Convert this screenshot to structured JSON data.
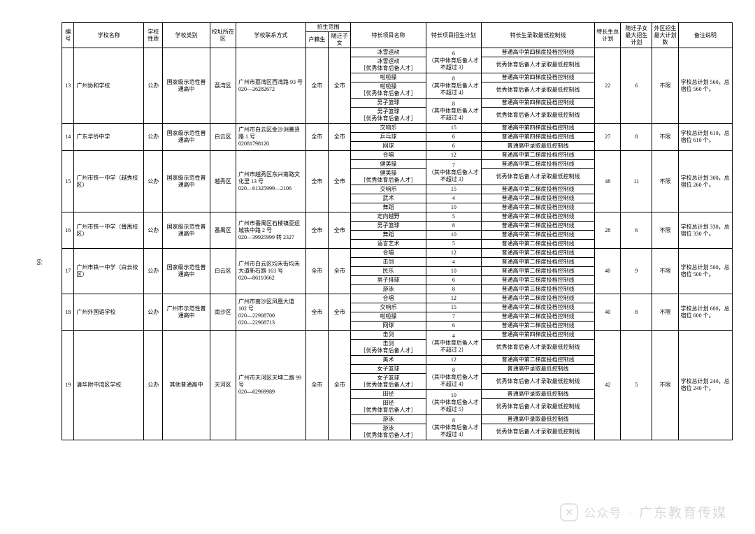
{
  "page_number": "99",
  "headers": {
    "seq": "编号",
    "school": "学校名称",
    "nature": "学校性质",
    "category": "学校类别",
    "district": "校址所在区",
    "contact": "学校联系方式",
    "scope": "招生范围",
    "scope_hk": "户籍生",
    "scope_sz": "随迁子女",
    "item": "特长项目名称",
    "plan": "特长项目招生计划",
    "line": "特长生录取最低控制线",
    "total": "特长生总计划",
    "sz_max": "随迁子女最大招生计划",
    "wq_max": "外区招生最大计划数",
    "remark": "备注说明"
  },
  "watermark": {
    "label1": "公众号",
    "label2": "广东教育传媒"
  },
  "rows": [
    {
      "seq": "13",
      "school": "广州协和学校",
      "nature": "公办",
      "category": "国家级示范性普通高中",
      "district": "荔湾区",
      "contact": "广州市荔湾区西湾路 93 号\n020—26282672",
      "hk": "全市",
      "sz": "全市",
      "total": "22",
      "sz_max": "6",
      "wq_max": "不限",
      "remark": "学校总计划 560，总宿位 560 个。",
      "sub": [
        {
          "item": "冰雪运动",
          "plan": "6",
          "plan_extra": "（其中体育后备人才不超过 3）",
          "line": "普通高中第四梯度投档控制线"
        },
        {
          "item": "冰雪运动\n［优秀体育后备人才］",
          "plan": "",
          "line": "优秀体育后备人才录取最低控制线"
        },
        {
          "item": "啦啦操",
          "plan": "8",
          "plan_extra": "（其中体育后备人才不超过 4）",
          "line": "普通高中第四梯度投档控制线"
        },
        {
          "item": "啦啦操\n［优秀体育后备人才］",
          "plan": "",
          "line": "优秀体育后备人才录取最低控制线"
        },
        {
          "item": "男子篮球",
          "plan": "8",
          "plan_extra": "（其中体育后备人才不超过 4）",
          "line": "普通高中第四梯度投档控制线"
        },
        {
          "item": "男子篮球\n［优秀体育后备人才］",
          "plan": "",
          "line": "优秀体育后备人才录取最低控制线"
        }
      ]
    },
    {
      "seq": "14",
      "school": "广东华侨中学",
      "nature": "公办",
      "category": "国家级示范性普通高中",
      "district": "白云区",
      "contact": "广州市白云区金沙洲善贤路 1 号\n02081798120",
      "hk": "全市",
      "sz": "全市",
      "total": "27",
      "sz_max": "8",
      "wq_max": "不限",
      "remark": "学校总计划 610，总宿位 610 个。",
      "sub": [
        {
          "item": "交响乐",
          "plan": "15",
          "line": "普通高中第四梯度投档控制线"
        },
        {
          "item": "乒乓球",
          "plan": "6",
          "line": "普通高中第四梯度投档控制线"
        },
        {
          "item": "网球",
          "plan": "6",
          "line": "普通高中录取最低控制线"
        }
      ]
    },
    {
      "seq": "15",
      "school": "广州市铁一中学（越秀校区）",
      "nature": "公办",
      "category": "国家级示范性普通高中",
      "district": "越秀区",
      "contact": "广州市越秀区东兴南路文化里 13 号\n020—61325999—2106",
      "hk": "全市",
      "sz": "全市",
      "total": "48",
      "sz_max": "11",
      "wq_max": "不限",
      "remark": "学校总计划 300，总宿位 260 个。",
      "sub": [
        {
          "item": "合唱",
          "plan": "12",
          "line": "普通高中第二梯度投档控制线"
        },
        {
          "item": "健美操",
          "plan": "7",
          "plan_extra": "（其中体育后备人才不超过 3）",
          "line": "普通高中第二梯度投档控制线"
        },
        {
          "item": "健美操\n［优秀体育后备人才］",
          "plan": "",
          "line": "优秀体育后备人才录取最低控制线"
        },
        {
          "item": "交响乐",
          "plan": "15",
          "line": "普通高中第二梯度投档控制线"
        },
        {
          "item": "武术",
          "plan": "4",
          "line": "普通高中第二梯度投档控制线"
        },
        {
          "item": "舞蹈",
          "plan": "10",
          "line": "普通高中第二梯度投档控制线"
        }
      ]
    },
    {
      "seq": "16",
      "school": "广州市铁一中学（番禺校区）",
      "nature": "公办",
      "category": "国家级示范性普通高中",
      "district": "番禺区",
      "contact": "广州市番禺区石楼镇亚运城铁中路 2 号\n020—39925999 转 2327",
      "hk": "全市",
      "sz": "全市",
      "total": "28",
      "sz_max": "6",
      "wq_max": "不限",
      "remark": "学校总计划 330，总宿位 330 个。",
      "sub": [
        {
          "item": "定向越野",
          "plan": "5",
          "line": "普通高中第二梯度投档控制线"
        },
        {
          "item": "男子篮球",
          "plan": "8",
          "line": "普通高中第二梯度投档控制线"
        },
        {
          "item": "舞蹈",
          "plan": "10",
          "line": "普通高中第二梯度投档控制线"
        },
        {
          "item": "语言艺术",
          "plan": "5",
          "line": "普通高中第二梯度投档控制线"
        }
      ]
    },
    {
      "seq": "17",
      "school": "广州市铁一中学（白云校区）",
      "nature": "公办",
      "category": "国家级示范性普通高中",
      "district": "白云区",
      "contact": "广州市白云区均禾街均禾大道新石路 163 号\n020—86110662",
      "hk": "全市",
      "sz": "全市",
      "total": "40",
      "sz_max": "9",
      "wq_max": "不限",
      "remark": "学校总计划 500，总宿位 500 个。",
      "sub": [
        {
          "item": "合唱",
          "plan": "12",
          "line": "普通高中第二梯度投档控制线"
        },
        {
          "item": "击剑",
          "plan": "4",
          "line": "普通高中第二梯度投档控制线"
        },
        {
          "item": "民乐",
          "plan": "10",
          "line": "普通高中第二梯度投档控制线"
        },
        {
          "item": "男子排球",
          "plan": "6",
          "line": "普通高中第三梯度投档控制线"
        },
        {
          "item": "游泳",
          "plan": "8",
          "line": "普通高中第三梯度投档控制线"
        }
      ]
    },
    {
      "seq": "18",
      "school": "广州外国语学校",
      "nature": "公办",
      "category": "广州市示范性普通高中",
      "district": "南沙区",
      "contact": "广州市南沙区凤凰大道 102 号\n020—22908700\n020—22908713",
      "hk": "全市",
      "sz": "全市",
      "total": "40",
      "sz_max": "8",
      "wq_max": "不限",
      "remark": "学校总计划 600，总宿位 600 个。",
      "sub": [
        {
          "item": "合唱",
          "plan": "12",
          "line": "普通高中第二梯度投档控制线"
        },
        {
          "item": "交响乐",
          "plan": "15",
          "line": "普通高中第二梯度投档控制线"
        },
        {
          "item": "啦啦操",
          "plan": "7",
          "line": "普通高中第二梯度投档控制线"
        },
        {
          "item": "网球",
          "plan": "6",
          "line": "普通高中第二梯度投档控制线"
        }
      ]
    },
    {
      "seq": "19",
      "school": "清华附中湾区学校",
      "nature": "公办",
      "category": "其他普通高中",
      "district": "天河区",
      "contact": "广州市天河区天坤二路 99 号\n020—62969989",
      "hk": "全市",
      "sz": "全市",
      "total": "42",
      "sz_max": "5",
      "wq_max": "不限",
      "remark": "学校总计划 240，总宿位 240 个。",
      "sub": [
        {
          "item": "击剑",
          "plan": "4",
          "plan_extra": "（其中体育后备人才不超过 2）",
          "line": "普通高中第四梯度投档控制线"
        },
        {
          "item": "击剑\n［优秀体育后备人才］",
          "plan": "",
          "line": "优秀体育后备人才录取最低控制线"
        },
        {
          "item": "美术",
          "plan": "12",
          "line": "普通高中第二梯度投档控制线"
        },
        {
          "item": "女子篮球",
          "plan": "8",
          "plan_extra": "（其中体育后备人才不超过 4）",
          "line": "普通高中录取最低控制线"
        },
        {
          "item": "女子篮球\n［优秀体育后备人才］",
          "plan": "",
          "line": "优秀体育后备人才录取最低控制线"
        },
        {
          "item": "田径",
          "plan": "10",
          "plan_extra": "（其中体育后备人才不超过 5）",
          "line": "普通高中录取最低控制线"
        },
        {
          "item": "田径\n［优秀体育后备人才］",
          "plan": "",
          "line": "优秀体育后备人才录取最低控制线"
        },
        {
          "item": "游泳",
          "plan": "8",
          "plan_extra": "（其中体育后备人才不超过 4）",
          "line": "普通高中录取最低控制线"
        },
        {
          "item": "游泳\n［优秀体育后备人才］",
          "plan": "",
          "line": "优秀体育后备人才录取最低控制线"
        }
      ]
    }
  ]
}
